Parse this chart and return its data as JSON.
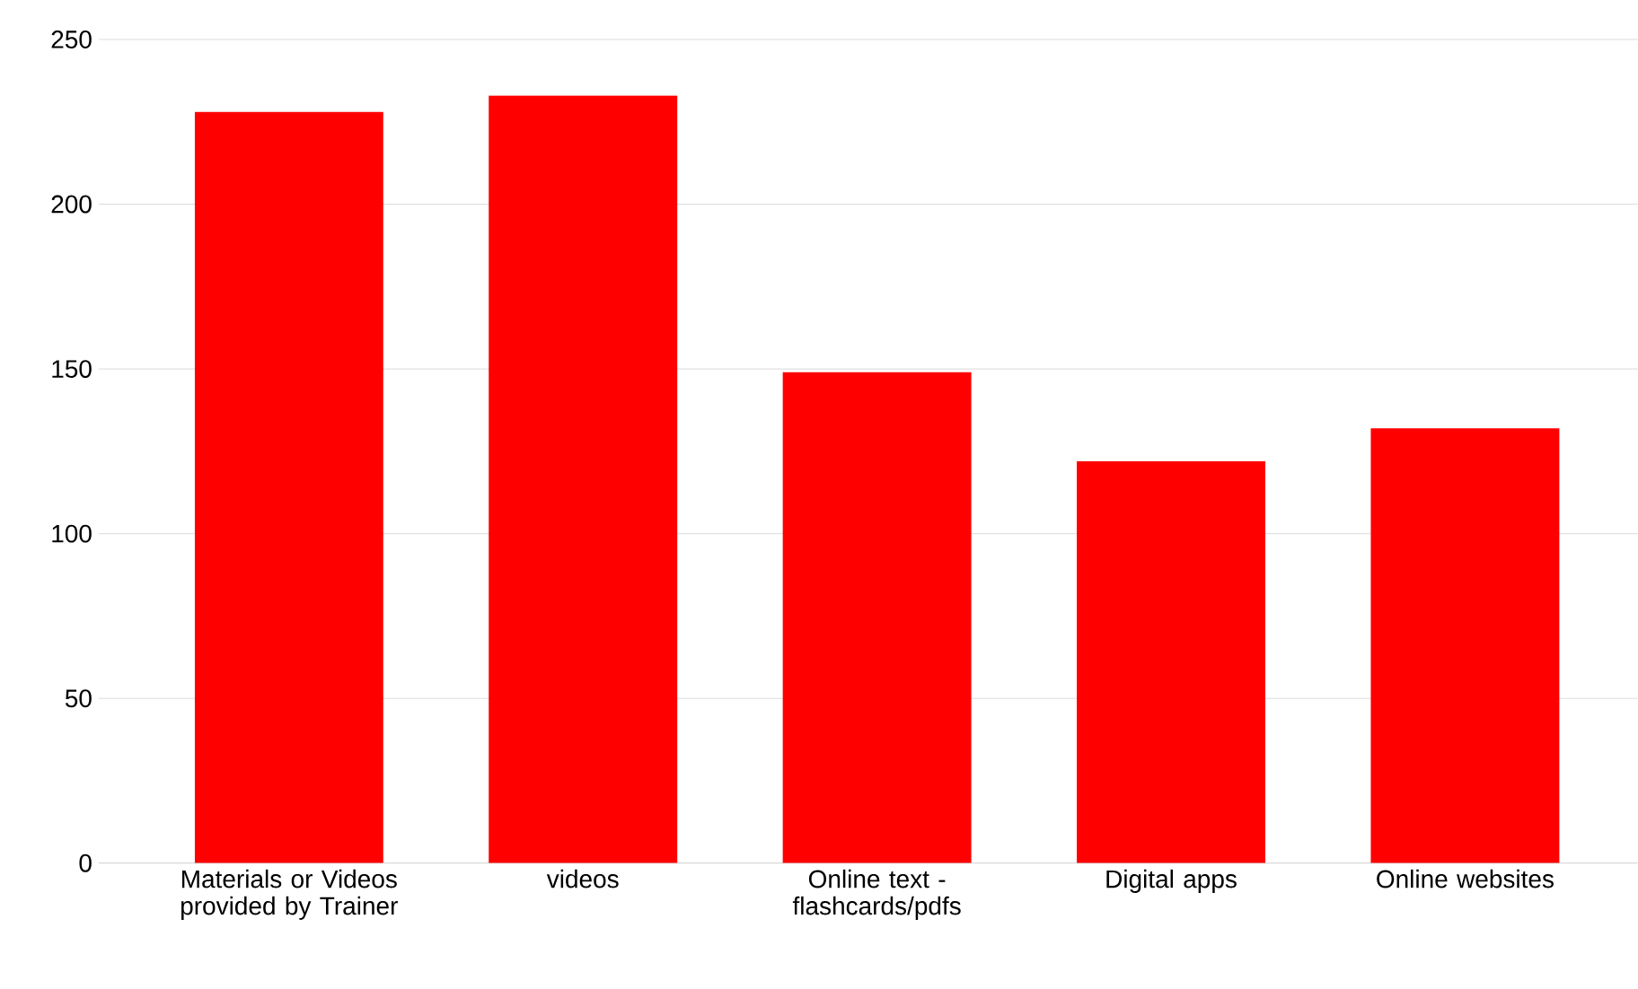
{
  "chart_data": {
    "type": "bar",
    "categories": [
      "Materials or Videos provided by Trainer",
      "videos",
      "Online text - flashcards/pdfs",
      "Digital apps",
      "Online websites"
    ],
    "values": [
      228,
      233,
      149,
      122,
      132
    ],
    "color": "#ff0000",
    "ylim": [
      0,
      250
    ],
    "yticks": [
      0,
      50,
      100,
      150,
      200,
      250
    ],
    "grid": "y"
  }
}
